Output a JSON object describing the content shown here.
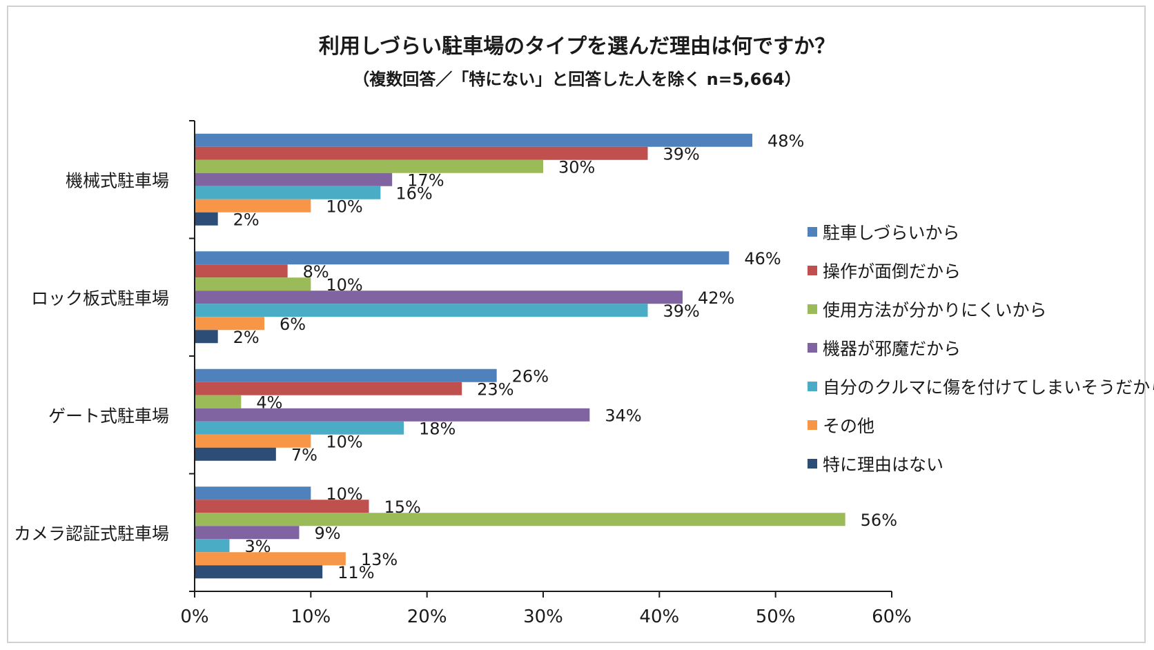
{
  "chart_data": {
    "type": "bar",
    "orientation": "horizontal",
    "title": "利用しづらい駐車場のタイプを選んだ理由は何ですか？",
    "subtitle": "（複数回答／「特にない」と回答した人を除く n=5,664）",
    "xlabel": "",
    "ylabel": "",
    "xlim": [
      0,
      60
    ],
    "x_ticks": [
      "0%",
      "10%",
      "20%",
      "30%",
      "40%",
      "50%",
      "60%"
    ],
    "grid": false,
    "legend_position": "right",
    "categories": [
      "機械式駐車場",
      "ロック板式駐車場",
      "ゲート式駐車場",
      "カメラ認証式駐車場"
    ],
    "series": [
      {
        "name": "駐車しづらいから",
        "color": "#4F81BD",
        "values": [
          48,
          46,
          26,
          10
        ]
      },
      {
        "name": "操作が面倒だから",
        "color": "#C0504D",
        "values": [
          39,
          8,
          23,
          15
        ]
      },
      {
        "name": "使用方法が分かりにくいから",
        "color": "#9BBB59",
        "values": [
          30,
          10,
          4,
          56
        ]
      },
      {
        "name": "機器が邪魔だから",
        "color": "#8064A2",
        "values": [
          17,
          42,
          34,
          9
        ]
      },
      {
        "name": "自分のクルマに傷を付けてしまいそうだから",
        "color": "#4BACC6",
        "values": [
          16,
          39,
          18,
          3
        ]
      },
      {
        "name": "その他",
        "color": "#F79646",
        "values": [
          10,
          6,
          10,
          13
        ]
      },
      {
        "name": "特に理由はない",
        "color": "#2C4D75",
        "values": [
          2,
          2,
          7,
          11
        ]
      }
    ],
    "data_labels": [
      [
        "48%",
        "39%",
        "30%",
        "17%",
        "16%",
        "10%",
        "2%"
      ],
      [
        "46%",
        "8%",
        "10%",
        "42%",
        "39%",
        "6%",
        "2%"
      ],
      [
        "26%",
        "23%",
        "4%",
        "34%",
        "18%",
        "10%",
        "7%"
      ],
      [
        "10%",
        "15%",
        "56%",
        "9%",
        "3%",
        "13%",
        "11%"
      ]
    ]
  }
}
